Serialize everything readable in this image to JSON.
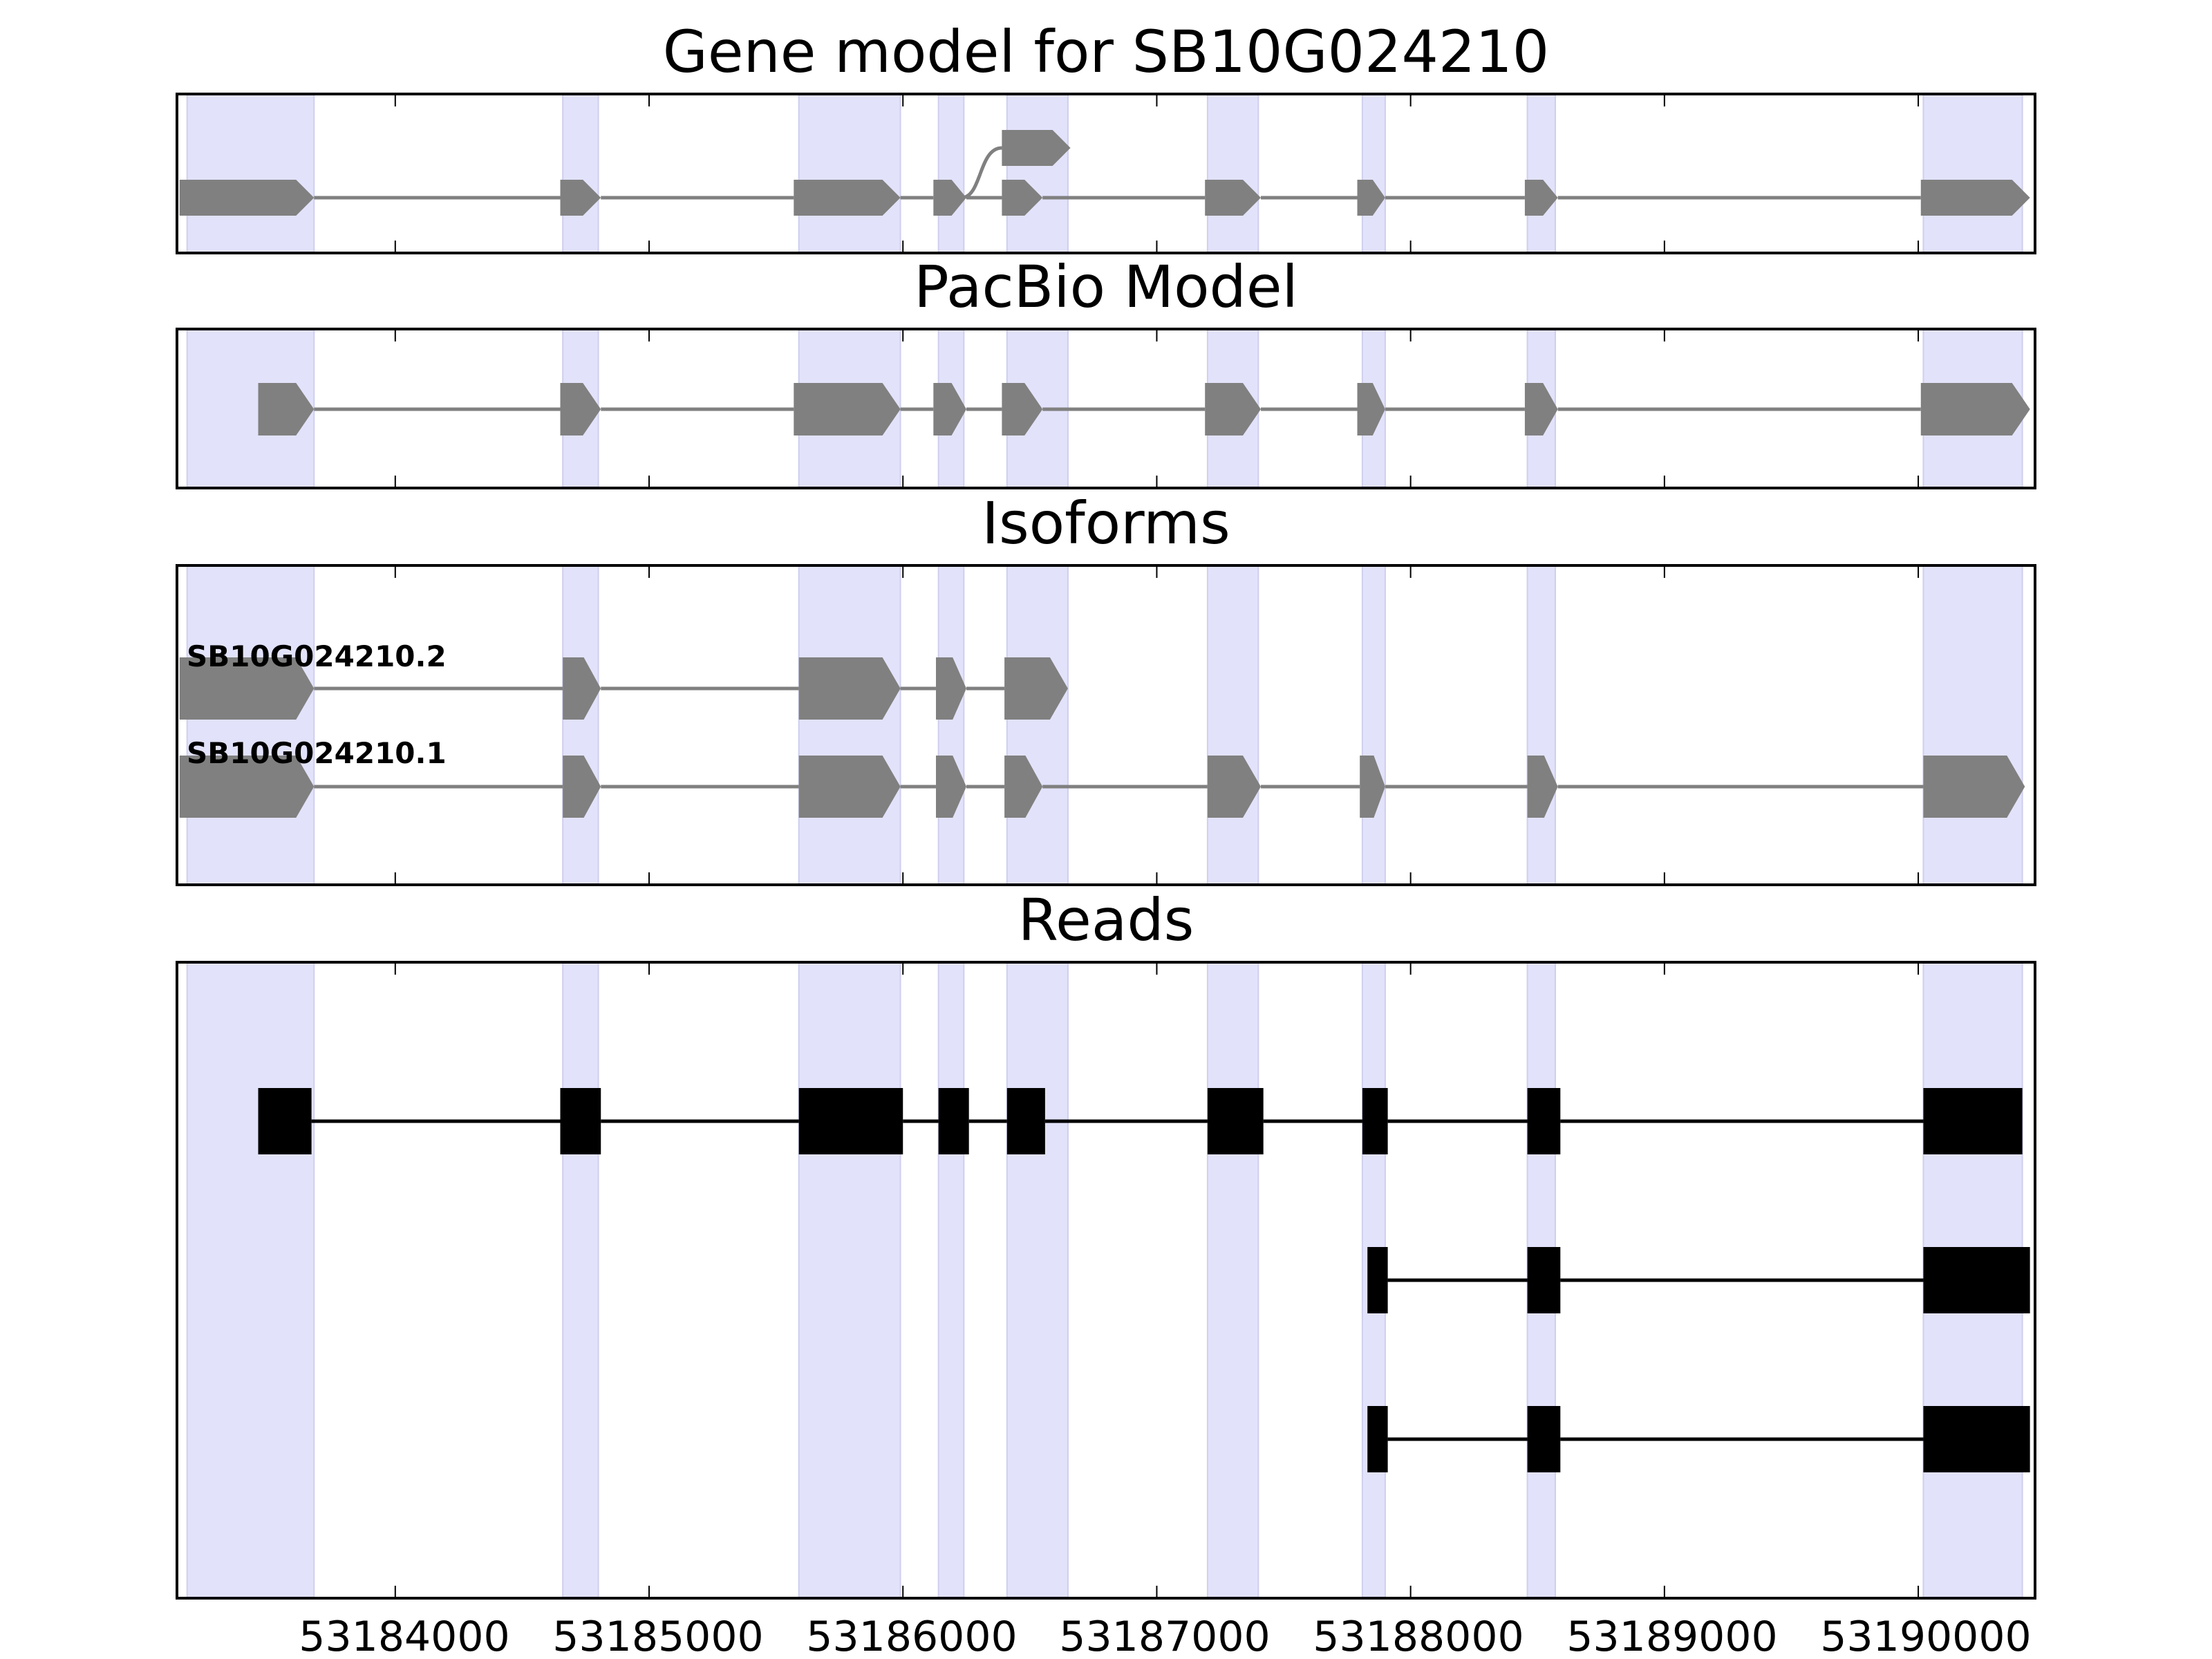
{
  "chart_data": {
    "type": "gene-structure",
    "x_range": [
      53183140,
      53190460
    ],
    "xticks": [
      53184000,
      53185000,
      53186000,
      53187000,
      53188000,
      53189000,
      53190000
    ],
    "xtick_labels": [
      "53184000",
      "53185000",
      "53186000",
      "53187000",
      "53188000",
      "53189000",
      "53190000"
    ],
    "colors": {
      "highlight": "#e2e2fb",
      "highlight_edge": "#cfcfee",
      "feature": "#808080",
      "read": "#000000",
      "frame": "#000000"
    },
    "highlight_regions": [
      [
        53183180,
        53183680
      ],
      [
        53184660,
        53184800
      ],
      [
        53185590,
        53185990
      ],
      [
        53186140,
        53186240
      ],
      [
        53186410,
        53186650
      ],
      [
        53187200,
        53187400
      ],
      [
        53187810,
        53187900
      ],
      [
        53188460,
        53188570
      ],
      [
        53190020,
        53190410
      ]
    ],
    "panels": [
      {
        "id": "gene-model",
        "title": "Gene model for SB10G024210",
        "exons": [
          [
            53183150,
            53183680
          ],
          [
            53184650,
            53184810
          ],
          [
            53185570,
            53185990
          ],
          [
            53186120,
            53186250
          ],
          [
            53186390,
            53186550
          ],
          [
            53187190,
            53187410
          ],
          [
            53187790,
            53187900
          ],
          [
            53188450,
            53188580
          ],
          [
            53190010,
            53190440
          ]
        ],
        "alt_exon": [
          53186390,
          53186660
        ],
        "alt_from": 53186230
      },
      {
        "id": "pacbio-model",
        "title": "PacBio Model",
        "exons": [
          [
            53183460,
            53183680
          ],
          [
            53184650,
            53184810
          ],
          [
            53185570,
            53185990
          ],
          [
            53186120,
            53186250
          ],
          [
            53186390,
            53186550
          ],
          [
            53187190,
            53187410
          ],
          [
            53187790,
            53187900
          ],
          [
            53188450,
            53188580
          ],
          [
            53190010,
            53190440
          ]
        ]
      },
      {
        "id": "isoforms",
        "title": "Isoforms",
        "isoforms": [
          {
            "name": "SB10G024210.2",
            "exons": [
              [
                53183150,
                53183680
              ],
              [
                53184660,
                53184810
              ],
              [
                53185590,
                53185990
              ],
              [
                53186130,
                53186250
              ],
              [
                53186400,
                53186650
              ]
            ]
          },
          {
            "name": "SB10G024210.1",
            "exons": [
              [
                53183150,
                53183680
              ],
              [
                53184660,
                53184810
              ],
              [
                53185590,
                53185990
              ],
              [
                53186130,
                53186250
              ],
              [
                53186400,
                53186550
              ],
              [
                53187200,
                53187410
              ],
              [
                53187800,
                53187900
              ],
              [
                53188460,
                53188580
              ],
              [
                53190020,
                53190420
              ]
            ]
          }
        ]
      },
      {
        "id": "reads",
        "title": "Reads",
        "reads": [
          [
            [
              53183460,
              53183670
            ],
            [
              53184650,
              53184810
            ],
            [
              53185590,
              53186000
            ],
            [
              53186140,
              53186260
            ],
            [
              53186410,
              53186560
            ],
            [
              53187200,
              53187420
            ],
            [
              53187810,
              53187910
            ],
            [
              53188460,
              53188590
            ],
            [
              53190020,
              53190410
            ]
          ],
          [
            [
              53187830,
              53187910
            ],
            [
              53188460,
              53188590
            ],
            [
              53190020,
              53190440
            ]
          ],
          [
            [
              53187830,
              53187910
            ],
            [
              53188460,
              53188590
            ],
            [
              53190020,
              53190440
            ]
          ]
        ]
      }
    ]
  }
}
